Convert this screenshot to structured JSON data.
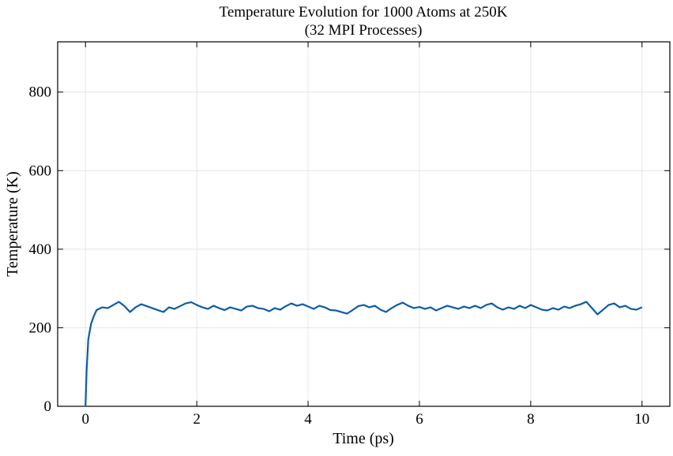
{
  "chart_data": {
    "type": "line",
    "title": [
      "Temperature Evolution for 1000 Atoms at 250K",
      "(32 MPI Processes)"
    ],
    "xlabel": "Time (ps)",
    "ylabel": "Temperature (K)",
    "x": [
      0,
      0.02,
      0.05,
      0.1,
      0.15,
      0.2,
      0.3,
      0.4,
      0.5,
      0.6,
      0.7,
      0.8,
      0.9,
      1.0,
      1.1,
      1.2,
      1.3,
      1.4,
      1.5,
      1.6,
      1.7,
      1.8,
      1.9,
      2.0,
      2.1,
      2.2,
      2.3,
      2.4,
      2.5,
      2.6,
      2.7,
      2.8,
      2.9,
      3.0,
      3.1,
      3.2,
      3.3,
      3.4,
      3.5,
      3.6,
      3.7,
      3.8,
      3.9,
      4.0,
      4.1,
      4.2,
      4.3,
      4.4,
      4.5,
      4.6,
      4.7,
      4.8,
      4.9,
      5.0,
      5.1,
      5.2,
      5.3,
      5.4,
      5.5,
      5.6,
      5.7,
      5.8,
      5.9,
      6.0,
      6.1,
      6.2,
      6.3,
      6.4,
      6.5,
      6.6,
      6.7,
      6.8,
      6.9,
      7.0,
      7.1,
      7.2,
      7.3,
      7.4,
      7.5,
      7.6,
      7.7,
      7.8,
      7.9,
      8.0,
      8.1,
      8.2,
      8.3,
      8.4,
      8.5,
      8.6,
      8.7,
      8.8,
      8.9,
      9.0,
      9.1,
      9.2,
      9.3,
      9.4,
      9.5,
      9.6,
      9.7,
      9.8,
      9.9,
      10.0
    ],
    "series": [
      {
        "color": "#0c5da5",
        "values": [
          0,
          90,
          170,
          210,
          230,
          245,
          252,
          250,
          258,
          266,
          255,
          240,
          252,
          260,
          255,
          250,
          245,
          240,
          252,
          248,
          255,
          262,
          265,
          258,
          252,
          248,
          256,
          250,
          245,
          252,
          248,
          244,
          254,
          256,
          250,
          248,
          242,
          250,
          246,
          255,
          262,
          256,
          260,
          254,
          248,
          256,
          252,
          245,
          244,
          240,
          236,
          245,
          255,
          258,
          252,
          256,
          246,
          240,
          250,
          258,
          264,
          256,
          250,
          253,
          248,
          252,
          244,
          250,
          256,
          252,
          248,
          254,
          250,
          256,
          250,
          258,
          262,
          252,
          246,
          252,
          248,
          256,
          250,
          258,
          252,
          246,
          244,
          250,
          246,
          254,
          250,
          256,
          260,
          266,
          250,
          234,
          246,
          258,
          262,
          252,
          256,
          248,
          246,
          252
        ]
      }
    ],
    "xlim": [
      -0.5,
      10.5
    ],
    "ylim": [
      0,
      928
    ],
    "xticks": [
      0,
      2,
      4,
      6,
      8,
      10
    ],
    "yticks": [
      0,
      200,
      400,
      600,
      800
    ],
    "grid": true
  }
}
